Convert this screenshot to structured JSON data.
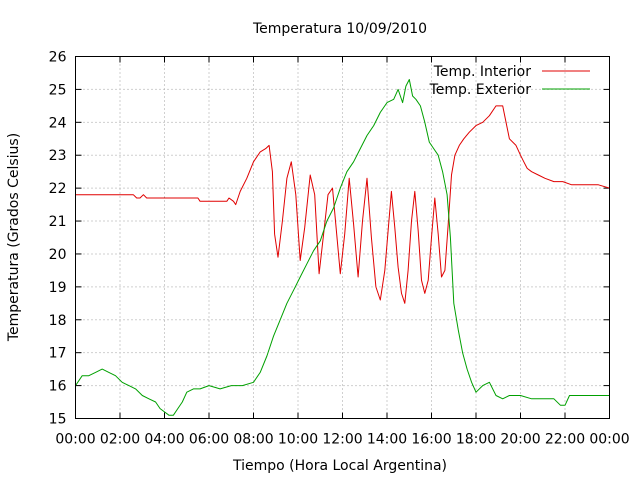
{
  "chart_data": {
    "type": "line",
    "title": "Temperatura 10/09/2010",
    "xlabel": "Tiempo (Hora Local Argentina)",
    "ylabel": "Temperatura (Grados Celsius)",
    "xlim": [
      0,
      24
    ],
    "ylim": [
      15,
      26
    ],
    "x_ticks": [
      "00:00",
      "02:00",
      "04:00",
      "06:00",
      "08:00",
      "10:00",
      "12:00",
      "14:00",
      "16:00",
      "18:00",
      "20:00",
      "22:00",
      "00:00"
    ],
    "y_ticks": [
      "15",
      "16",
      "17",
      "18",
      "19",
      "20",
      "21",
      "22",
      "23",
      "24",
      "25",
      "26"
    ],
    "grid": true,
    "legend_position": "top-right",
    "series": [
      {
        "name": "Temp. Interior",
        "color": "#e00000",
        "x": [
          0,
          2.6,
          2.75,
          2.9,
          3.05,
          3.2,
          3.5,
          5.5,
          5.6,
          5.8,
          6.0,
          6.8,
          6.9,
          7.1,
          7.2,
          7.4,
          7.7,
          8.0,
          8.3,
          8.55,
          8.7,
          8.85,
          8.95,
          9.1,
          9.3,
          9.5,
          9.7,
          9.9,
          10.1,
          10.3,
          10.55,
          10.75,
          10.95,
          11.15,
          11.35,
          11.55,
          11.7,
          11.9,
          12.1,
          12.3,
          12.5,
          12.7,
          12.9,
          13.1,
          13.3,
          13.5,
          13.7,
          13.9,
          14.05,
          14.2,
          14.35,
          14.5,
          14.65,
          14.8,
          14.95,
          15.1,
          15.25,
          15.4,
          15.55,
          15.7,
          15.85,
          16.0,
          16.15,
          16.3,
          16.45,
          16.6,
          16.75,
          16.9,
          17.05,
          17.25,
          17.45,
          17.7,
          18.0,
          18.3,
          18.6,
          18.9,
          19.2,
          19.5,
          19.8,
          20.0,
          20.15,
          20.3,
          20.5,
          20.8,
          21.1,
          21.5,
          21.9,
          22.3,
          22.7,
          23.1,
          23.5,
          24.0
        ],
        "values": [
          21.8,
          21.8,
          21.7,
          21.7,
          21.8,
          21.7,
          21.7,
          21.7,
          21.6,
          21.6,
          21.6,
          21.6,
          21.7,
          21.6,
          21.5,
          21.9,
          22.3,
          22.8,
          23.1,
          23.2,
          23.3,
          22.5,
          20.6,
          19.9,
          21.0,
          22.3,
          22.8,
          21.8,
          19.8,
          20.8,
          22.4,
          21.8,
          19.4,
          20.6,
          21.8,
          22.0,
          20.9,
          19.4,
          20.6,
          22.3,
          20.9,
          19.3,
          21.0,
          22.3,
          20.5,
          19.0,
          18.6,
          19.5,
          20.7,
          21.9,
          20.8,
          19.6,
          18.8,
          18.5,
          19.5,
          21.0,
          21.9,
          20.7,
          19.2,
          18.8,
          19.2,
          20.5,
          21.7,
          20.6,
          19.3,
          19.5,
          20.9,
          22.4,
          23.0,
          23.3,
          23.5,
          23.7,
          23.9,
          24.0,
          24.2,
          24.5,
          24.5,
          23.5,
          23.3,
          23.0,
          22.8,
          22.6,
          22.5,
          22.4,
          22.3,
          22.2,
          22.2,
          22.1,
          22.1,
          22.1,
          22.1,
          22.0
        ]
      },
      {
        "name": "Temp. Exterior",
        "color": "#00a000",
        "x": [
          0,
          0.3,
          0.6,
          0.9,
          1.2,
          1.5,
          1.8,
          2.1,
          2.4,
          2.7,
          3.0,
          3.3,
          3.6,
          3.8,
          4.0,
          4.2,
          4.4,
          4.6,
          4.8,
          5.0,
          5.3,
          5.6,
          6.0,
          6.5,
          7.0,
          7.5,
          8.0,
          8.3,
          8.6,
          8.9,
          9.2,
          9.5,
          9.8,
          10.1,
          10.4,
          10.7,
          11.0,
          11.3,
          11.6,
          11.9,
          12.2,
          12.5,
          12.8,
          13.1,
          13.4,
          13.7,
          14.0,
          14.3,
          14.5,
          14.7,
          14.85,
          15.0,
          15.15,
          15.3,
          15.5,
          15.7,
          15.9,
          16.1,
          16.3,
          16.5,
          16.7,
          16.85,
          17.0,
          17.2,
          17.4,
          17.6,
          17.8,
          18.0,
          18.3,
          18.6,
          18.9,
          19.2,
          19.5,
          20.0,
          20.5,
          21.0,
          21.5,
          21.8,
          22.0,
          22.2,
          22.5,
          23.0,
          23.5,
          24.0
        ],
        "values": [
          16.0,
          16.3,
          16.3,
          16.4,
          16.5,
          16.4,
          16.3,
          16.1,
          16.0,
          15.9,
          15.7,
          15.6,
          15.5,
          15.3,
          15.2,
          15.1,
          15.1,
          15.3,
          15.5,
          15.8,
          15.9,
          15.9,
          16.0,
          15.9,
          16.0,
          16.0,
          16.1,
          16.4,
          16.9,
          17.5,
          18.0,
          18.5,
          18.9,
          19.3,
          19.7,
          20.1,
          20.4,
          21.0,
          21.4,
          22.0,
          22.5,
          22.8,
          23.2,
          23.6,
          23.9,
          24.3,
          24.6,
          24.7,
          25.0,
          24.6,
          25.1,
          25.3,
          24.8,
          24.7,
          24.5,
          24.0,
          23.4,
          23.2,
          23.0,
          22.5,
          21.8,
          20.5,
          18.5,
          17.7,
          17.0,
          16.5,
          16.1,
          15.8,
          16.0,
          16.1,
          15.7,
          15.6,
          15.7,
          15.7,
          15.6,
          15.6,
          15.6,
          15.4,
          15.4,
          15.7,
          15.7,
          15.7,
          15.7,
          15.7
        ]
      }
    ]
  }
}
